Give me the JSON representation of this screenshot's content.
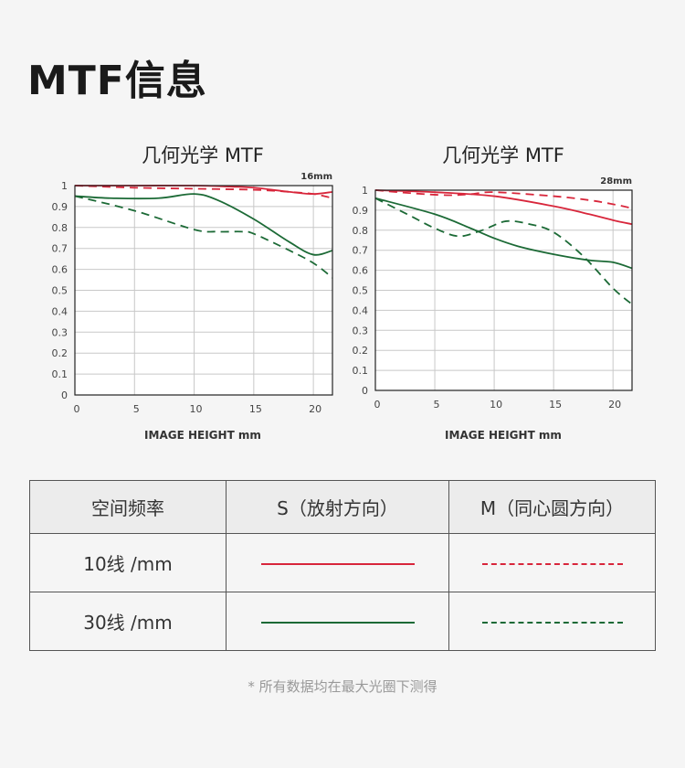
{
  "page_title": "MTF信息",
  "colors": {
    "line_10": "#d8263b",
    "line_30": "#1c6a36",
    "grid": "#c8c8c8"
  },
  "chart_data": [
    {
      "type": "line",
      "title": "几何光学 MTF",
      "focal_label": "16mm",
      "xlabel": "IMAGE HEIGHT  mm",
      "ylabel": "",
      "xlim": [
        0,
        21.6
      ],
      "ylim": [
        0,
        1
      ],
      "xticks": [
        "0",
        "5",
        "10",
        "15",
        "20"
      ],
      "yticks": [
        "0",
        "0.1",
        "0.2",
        "0.3",
        "0.4",
        "0.5",
        "0.6",
        "0.7",
        "0.8",
        "0.9",
        "1"
      ],
      "grid": true,
      "series": [
        {
          "key": "S10",
          "style": "solid",
          "color": "#d8263b",
          "x": [
            0,
            5,
            10,
            13,
            15,
            18,
            20,
            21.6
          ],
          "y": [
            1,
            1,
            1,
            0.995,
            0.99,
            0.97,
            0.96,
            0.97
          ]
        },
        {
          "key": "M10",
          "style": "dashed",
          "color": "#d8263b",
          "x": [
            0,
            5,
            10,
            15,
            18,
            20,
            21.6
          ],
          "y": [
            1,
            0.99,
            0.985,
            0.98,
            0.97,
            0.96,
            0.94
          ]
        },
        {
          "key": "S30",
          "style": "solid",
          "color": "#1c6a36",
          "x": [
            0,
            3,
            7,
            10,
            12,
            15,
            18,
            20,
            21.6
          ],
          "y": [
            0.95,
            0.94,
            0.94,
            0.96,
            0.93,
            0.84,
            0.73,
            0.67,
            0.69
          ]
        },
        {
          "key": "M30",
          "style": "dashed",
          "color": "#1c6a36",
          "x": [
            0,
            5,
            10,
            12,
            14,
            15,
            18,
            20,
            21.6
          ],
          "y": [
            0.95,
            0.88,
            0.79,
            0.78,
            0.78,
            0.77,
            0.69,
            0.63,
            0.56
          ]
        }
      ]
    },
    {
      "type": "line",
      "title": "几何光学 MTF",
      "focal_label": "28mm",
      "xlabel": "IMAGE HEIGHT  mm",
      "ylabel": "",
      "xlim": [
        0,
        21.6
      ],
      "ylim": [
        0,
        1
      ],
      "xticks": [
        "0",
        "5",
        "10",
        "15",
        "20"
      ],
      "yticks": [
        "0",
        "0.1",
        "0.2",
        "0.3",
        "0.4",
        "0.5",
        "0.6",
        "0.7",
        "0.8",
        "0.9",
        "1"
      ],
      "grid": true,
      "series": [
        {
          "key": "S10",
          "style": "solid",
          "color": "#d8263b",
          "x": [
            0,
            5,
            10,
            15,
            18,
            20,
            21.6
          ],
          "y": [
            1,
            0.99,
            0.97,
            0.92,
            0.88,
            0.85,
            0.83
          ]
        },
        {
          "key": "M10",
          "style": "dashed",
          "color": "#d8263b",
          "x": [
            0,
            3,
            6,
            8,
            10,
            15,
            18,
            20,
            21.6
          ],
          "y": [
            1,
            0.985,
            0.975,
            0.98,
            0.99,
            0.97,
            0.95,
            0.93,
            0.91
          ]
        },
        {
          "key": "S30",
          "style": "solid",
          "color": "#1c6a36",
          "x": [
            0,
            5,
            8,
            10,
            12,
            15,
            18,
            20,
            21.6
          ],
          "y": [
            0.96,
            0.88,
            0.81,
            0.76,
            0.72,
            0.68,
            0.65,
            0.64,
            0.61
          ]
        },
        {
          "key": "M30",
          "style": "dashed",
          "color": "#1c6a36",
          "x": [
            0,
            3,
            5,
            7,
            9,
            11,
            13,
            15,
            17.5,
            20,
            21.6
          ],
          "y": [
            0.96,
            0.87,
            0.81,
            0.77,
            0.8,
            0.845,
            0.83,
            0.79,
            0.67,
            0.51,
            0.43
          ]
        }
      ]
    }
  ],
  "legend_table": {
    "headers": [
      "空间频率",
      "S（放射方向）",
      "M（同心圆方向）"
    ],
    "rows": [
      {
        "label": "10线 /mm",
        "s": "solid red line",
        "m": "dashed red line"
      },
      {
        "label": "30线 /mm",
        "s": "solid green line",
        "m": "dashed green line"
      }
    ]
  },
  "footnote": "* 所有数据均在最大光圈下测得"
}
